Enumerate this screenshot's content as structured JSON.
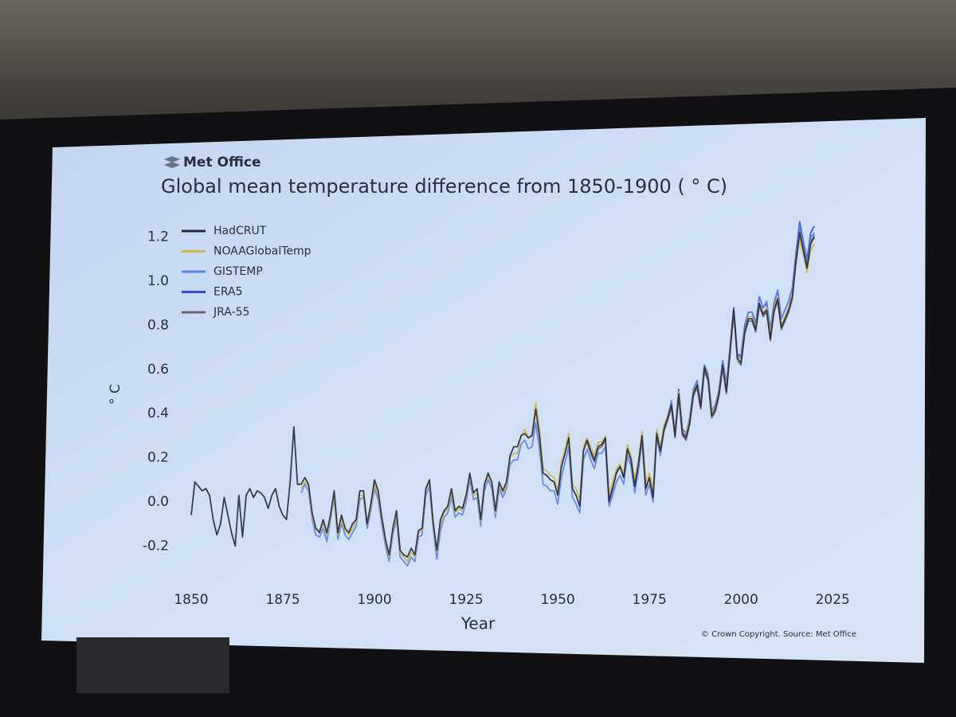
{
  "chart_data": {
    "type": "line",
    "brand": "Met Office",
    "title": "Global mean temperature difference from 1850-1900 ( ° C)",
    "xlabel": "Year",
    "ylabel": "° C",
    "source": "© Crown Copyright. Source: Met Office",
    "legend": "upper left",
    "grid": false,
    "xlim": [
      1845,
      2028
    ],
    "ylim": [
      -0.3,
      1.3
    ],
    "xticks": [
      1850,
      1875,
      1900,
      1925,
      1950,
      1975,
      2000,
      2025
    ],
    "yticks": [
      -0.2,
      {
        "value": 0,
        "label": "0.0"
      },
      0.2,
      0.4,
      0.6,
      0.8,
      {
        "value": 1,
        "label": "1.0"
      },
      1.2
    ],
    "x": [
      1850,
      1851,
      1852,
      1853,
      1854,
      1855,
      1856,
      1857,
      1858,
      1859,
      1860,
      1861,
      1862,
      1863,
      1864,
      1865,
      1866,
      1867,
      1868,
      1869,
      1870,
      1871,
      1872,
      1873,
      1874,
      1875,
      1876,
      1877,
      1878,
      1879,
      1880,
      1881,
      1882,
      1883,
      1884,
      1885,
      1886,
      1887,
      1888,
      1889,
      1890,
      1891,
      1892,
      1893,
      1894,
      1895,
      1896,
      1897,
      1898,
      1899,
      1900,
      1901,
      1902,
      1903,
      1904,
      1905,
      1906,
      1907,
      1908,
      1909,
      1910,
      1911,
      1912,
      1913,
      1914,
      1915,
      1916,
      1917,
      1918,
      1919,
      1920,
      1921,
      1922,
      1923,
      1924,
      1925,
      1926,
      1927,
      1928,
      1929,
      1930,
      1931,
      1932,
      1933,
      1934,
      1935,
      1936,
      1937,
      1938,
      1939,
      1940,
      1941,
      1942,
      1943,
      1944,
      1945,
      1946,
      1947,
      1948,
      1949,
      1950,
      1951,
      1952,
      1953,
      1954,
      1955,
      1956,
      1957,
      1958,
      1959,
      1960,
      1961,
      1962,
      1963,
      1964,
      1965,
      1966,
      1967,
      1968,
      1969,
      1970,
      1971,
      1972,
      1973,
      1974,
      1975,
      1976,
      1977,
      1978,
      1979,
      1980,
      1981,
      1982,
      1983,
      1984,
      1985,
      1986,
      1987,
      1988,
      1989,
      1990,
      1991,
      1992,
      1993,
      1994,
      1995,
      1996,
      1997,
      1998,
      1999,
      2000,
      2001,
      2002,
      2003,
      2004,
      2005,
      2006,
      2007,
      2008,
      2009,
      2010,
      2011,
      2012,
      2013,
      2014,
      2015,
      2016,
      2017,
      2018,
      2019,
      2020
    ],
    "series": [
      {
        "name": "HadCRUT",
        "color": "#2a2a3c",
        "values": [
          -0.06,
          0.09,
          0.07,
          0.05,
          0.06,
          0.03,
          -0.08,
          -0.15,
          -0.1,
          0.02,
          -0.06,
          -0.14,
          -0.2,
          0.03,
          -0.16,
          0.03,
          0.06,
          0.02,
          0.05,
          0.04,
          0.02,
          -0.03,
          0.03,
          0.06,
          -0.02,
          -0.06,
          -0.08,
          0.09,
          0.34,
          0.08,
          0.08,
          0.11,
          0.08,
          -0.05,
          -0.12,
          -0.14,
          -0.08,
          -0.14,
          -0.06,
          0.05,
          -0.14,
          -0.06,
          -0.12,
          -0.14,
          -0.1,
          -0.08,
          0.05,
          0.05,
          -0.1,
          -0.01,
          0.1,
          0.05,
          -0.07,
          -0.17,
          -0.24,
          -0.12,
          -0.04,
          -0.22,
          -0.24,
          -0.25,
          -0.21,
          -0.24,
          -0.13,
          -0.12,
          0.06,
          0.1,
          -0.09,
          -0.22,
          -0.08,
          -0.04,
          -0.02,
          0.06,
          -0.04,
          -0.02,
          -0.03,
          0.03,
          0.13,
          0.04,
          0.06,
          -0.08,
          0.08,
          0.13,
          0.09,
          -0.04,
          0.09,
          0.05,
          0.09,
          0.21,
          0.25,
          0.25,
          0.3,
          0.31,
          0.29,
          0.3,
          0.42,
          0.3,
          0.13,
          0.12,
          0.1,
          0.09,
          0.03,
          0.16,
          0.22,
          0.29,
          0.06,
          0.03,
          -0.02,
          0.23,
          0.28,
          0.23,
          0.19,
          0.25,
          0.26,
          0.29,
          0.0,
          0.06,
          0.13,
          0.16,
          0.11,
          0.24,
          0.19,
          0.07,
          0.17,
          0.3,
          0.06,
          0.11,
          0.02,
          0.31,
          0.23,
          0.33,
          0.38,
          0.44,
          0.3,
          0.49,
          0.31,
          0.29,
          0.36,
          0.49,
          0.53,
          0.43,
          0.61,
          0.56,
          0.39,
          0.42,
          0.49,
          0.62,
          0.5,
          0.68,
          0.87,
          0.65,
          0.63,
          0.77,
          0.83,
          0.83,
          0.78,
          0.9,
          0.85,
          0.87,
          0.74,
          0.87,
          0.92,
          0.79,
          0.83,
          0.87,
          0.93,
          1.09,
          1.22,
          1.14,
          1.06,
          1.17,
          1.2
        ]
      },
      {
        "name": "NOAAGlobalTemp",
        "color": "#c9b84c",
        "values": [
          null,
          null,
          null,
          null,
          null,
          null,
          null,
          null,
          null,
          null,
          null,
          null,
          null,
          null,
          null,
          null,
          null,
          null,
          null,
          null,
          null,
          null,
          null,
          null,
          null,
          null,
          null,
          null,
          null,
          null,
          0.06,
          0.09,
          0.07,
          -0.07,
          -0.12,
          -0.13,
          -0.1,
          -0.15,
          -0.07,
          0.03,
          -0.15,
          -0.08,
          -0.13,
          -0.15,
          -0.12,
          -0.09,
          0.03,
          0.03,
          -0.1,
          -0.03,
          0.08,
          0.03,
          -0.08,
          -0.18,
          -0.25,
          -0.13,
          -0.06,
          -0.23,
          -0.25,
          -0.27,
          -0.23,
          -0.25,
          -0.14,
          -0.13,
          0.05,
          0.09,
          -0.1,
          -0.23,
          -0.1,
          -0.05,
          -0.03,
          0.04,
          -0.05,
          -0.03,
          -0.04,
          0.02,
          0.12,
          0.03,
          0.04,
          -0.09,
          0.07,
          0.12,
          0.08,
          -0.05,
          0.08,
          0.04,
          0.08,
          0.2,
          0.22,
          0.22,
          0.3,
          0.33,
          0.29,
          0.31,
          0.45,
          0.33,
          0.15,
          0.14,
          0.12,
          0.11,
          0.05,
          0.18,
          0.24,
          0.31,
          0.08,
          0.06,
          0.01,
          0.25,
          0.29,
          0.25,
          0.21,
          0.27,
          0.27,
          0.3,
          0.03,
          0.09,
          0.15,
          0.17,
          0.13,
          0.26,
          0.21,
          0.1,
          0.19,
          0.32,
          0.09,
          0.13,
          0.05,
          0.33,
          0.25,
          0.35,
          0.39,
          0.44,
          0.31,
          0.5,
          0.32,
          0.31,
          0.37,
          0.5,
          0.53,
          0.44,
          0.61,
          0.57,
          0.4,
          0.43,
          0.5,
          0.62,
          0.52,
          0.68,
          0.85,
          0.64,
          0.63,
          0.77,
          0.84,
          0.84,
          0.79,
          0.9,
          0.86,
          0.88,
          0.76,
          0.88,
          0.93,
          0.8,
          0.84,
          0.88,
          0.94,
          1.08,
          1.19,
          1.12,
          1.04,
          1.14,
          1.17
        ]
      },
      {
        "name": "GISTEMP",
        "color": "#5b82ea",
        "values": [
          null,
          null,
          null,
          null,
          null,
          null,
          null,
          null,
          null,
          null,
          null,
          null,
          null,
          null,
          null,
          null,
          null,
          null,
          null,
          null,
          null,
          null,
          null,
          null,
          null,
          null,
          null,
          null,
          null,
          null,
          0.04,
          0.08,
          0.05,
          -0.08,
          -0.15,
          -0.16,
          -0.12,
          -0.18,
          -0.08,
          0.02,
          -0.17,
          -0.1,
          -0.15,
          -0.17,
          -0.14,
          -0.11,
          0.01,
          0.02,
          -0.12,
          -0.04,
          0.06,
          0.01,
          -0.1,
          -0.2,
          -0.27,
          -0.15,
          -0.08,
          -0.25,
          -0.27,
          -0.29,
          -0.25,
          -0.27,
          -0.16,
          -0.15,
          0.03,
          0.07,
          -0.12,
          -0.26,
          -0.13,
          -0.07,
          -0.05,
          0.02,
          -0.07,
          -0.05,
          -0.06,
          0.0,
          0.1,
          0.01,
          0.02,
          -0.11,
          0.05,
          0.1,
          0.06,
          -0.07,
          0.06,
          0.02,
          0.06,
          0.17,
          0.19,
          0.19,
          0.26,
          0.28,
          0.24,
          0.25,
          0.36,
          0.24,
          0.08,
          0.07,
          0.05,
          0.05,
          -0.01,
          0.11,
          0.18,
          0.25,
          0.02,
          -0.01,
          -0.05,
          0.19,
          0.24,
          0.19,
          0.15,
          0.22,
          0.22,
          0.25,
          -0.02,
          0.03,
          0.09,
          0.12,
          0.08,
          0.21,
          0.16,
          0.04,
          0.14,
          0.28,
          0.03,
          0.08,
          0.0,
          0.29,
          0.21,
          0.33,
          0.38,
          0.46,
          0.31,
          0.5,
          0.32,
          0.3,
          0.38,
          0.51,
          0.55,
          0.45,
          0.62,
          0.58,
          0.41,
          0.44,
          0.51,
          0.64,
          0.54,
          0.7,
          0.84,
          0.66,
          0.65,
          0.79,
          0.86,
          0.86,
          0.81,
          0.93,
          0.88,
          0.91,
          0.78,
          0.9,
          0.96,
          0.83,
          0.87,
          0.91,
          0.97,
          1.12,
          1.25,
          1.17,
          1.09,
          1.2,
          1.22
        ]
      },
      {
        "name": "ERA5",
        "color": "#3a46d8",
        "values": [
          null,
          null,
          null,
          null,
          null,
          null,
          null,
          null,
          null,
          null,
          null,
          null,
          null,
          null,
          null,
          null,
          null,
          null,
          null,
          null,
          null,
          null,
          null,
          null,
          null,
          null,
          null,
          null,
          null,
          null,
          null,
          null,
          null,
          null,
          null,
          null,
          null,
          null,
          null,
          null,
          null,
          null,
          null,
          null,
          null,
          null,
          null,
          null,
          null,
          null,
          null,
          null,
          null,
          null,
          null,
          null,
          null,
          null,
          null,
          null,
          null,
          null,
          null,
          null,
          null,
          null,
          null,
          null,
          null,
          null,
          null,
          null,
          null,
          null,
          null,
          null,
          null,
          null,
          null,
          null,
          null,
          null,
          null,
          null,
          null,
          null,
          null,
          null,
          null,
          null,
          null,
          null,
          null,
          null,
          null,
          null,
          null,
          null,
          null,
          null,
          null,
          null,
          null,
          null,
          null,
          null,
          null,
          null,
          null,
          null,
          null,
          null,
          null,
          null,
          null,
          null,
          null,
          null,
          null,
          null,
          null,
          null,
          null,
          null,
          null,
          null,
          null,
          null,
          null,
          0.34,
          0.39,
          0.45,
          0.31,
          0.51,
          0.33,
          0.31,
          0.38,
          0.51,
          0.55,
          0.45,
          0.62,
          0.58,
          0.41,
          0.44,
          0.51,
          0.64,
          0.53,
          0.7,
          0.88,
          0.67,
          0.66,
          0.8,
          0.86,
          0.86,
          0.81,
          0.93,
          0.88,
          0.9,
          0.78,
          0.9,
          0.96,
          0.83,
          0.87,
          0.91,
          0.97,
          1.13,
          1.27,
          1.18,
          1.1,
          1.22,
          1.25
        ]
      },
      {
        "name": "JRA-55",
        "color": "#6e6270",
        "values": [
          null,
          null,
          null,
          null,
          null,
          null,
          null,
          null,
          null,
          null,
          null,
          null,
          null,
          null,
          null,
          null,
          null,
          null,
          null,
          null,
          null,
          null,
          null,
          null,
          null,
          null,
          null,
          null,
          null,
          null,
          null,
          null,
          null,
          null,
          null,
          null,
          null,
          null,
          null,
          null,
          null,
          null,
          null,
          null,
          null,
          null,
          null,
          null,
          null,
          null,
          null,
          null,
          null,
          null,
          null,
          null,
          null,
          null,
          null,
          null,
          null,
          null,
          null,
          null,
          null,
          null,
          null,
          null,
          null,
          null,
          null,
          null,
          null,
          null,
          null,
          null,
          null,
          null,
          null,
          null,
          null,
          null,
          null,
          null,
          null,
          null,
          null,
          null,
          null,
          null,
          null,
          null,
          null,
          null,
          null,
          null,
          null,
          null,
          null,
          null,
          null,
          null,
          null,
          null,
          null,
          null,
          null,
          null,
          0.27,
          0.22,
          0.18,
          0.24,
          0.25,
          0.28,
          0.01,
          0.07,
          0.14,
          0.16,
          0.11,
          0.24,
          0.19,
          0.07,
          0.17,
          0.3,
          0.06,
          0.11,
          0.02,
          0.31,
          0.23,
          0.32,
          0.37,
          0.43,
          0.29,
          0.48,
          0.3,
          0.28,
          0.35,
          0.48,
          0.52,
          0.42,
          0.59,
          0.55,
          0.38,
          0.41,
          0.48,
          0.61,
          0.49,
          0.67,
          0.86,
          0.64,
          0.62,
          0.76,
          0.82,
          0.82,
          0.77,
          0.89,
          0.84,
          0.86,
          0.73,
          0.86,
          0.91,
          0.78,
          0.82,
          0.86,
          0.92,
          1.1,
          1.24,
          1.15,
          1.07,
          1.18,
          1.21
        ]
      }
    ]
  }
}
